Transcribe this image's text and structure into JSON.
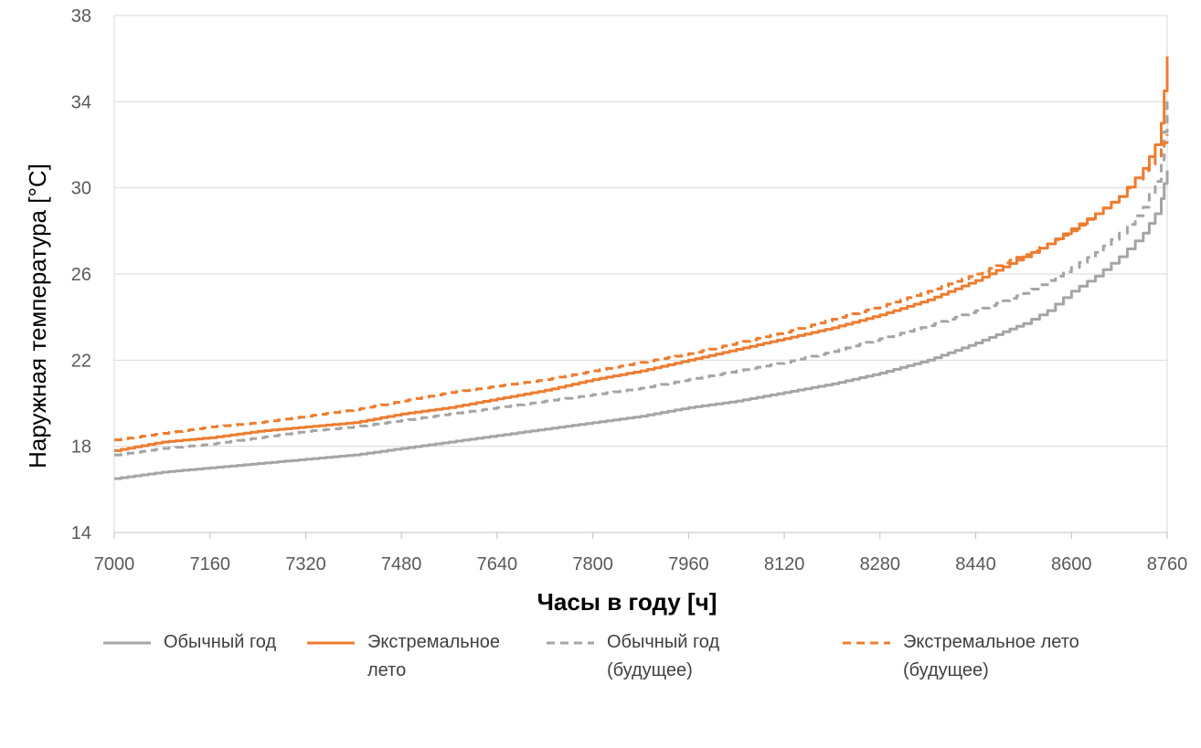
{
  "chart_data": {
    "type": "line",
    "xlabel": "Часы в году [ч]",
    "ylabel": "Наружная температура [°C]",
    "xlim": [
      7000,
      8760
    ],
    "ylim": [
      14,
      38
    ],
    "x_ticks": [
      "7000",
      "7160",
      "7320",
      "7480",
      "7640",
      "7800",
      "7960",
      "8120",
      "8280",
      "8440",
      "8600",
      "8760"
    ],
    "y_ticks": [
      "14",
      "18",
      "22",
      "26",
      "30",
      "34",
      "38"
    ],
    "grid": "horizontal",
    "legend_position": "bottom",
    "series": [
      {
        "name": "Обычный год",
        "color": "#a5a5a5",
        "dash": "solid",
        "points": [
          [
            7000,
            16.5
          ],
          [
            7080,
            16.8
          ],
          [
            7160,
            17.0
          ],
          [
            7240,
            17.2
          ],
          [
            7320,
            17.4
          ],
          [
            7400,
            17.6
          ],
          [
            7480,
            17.9
          ],
          [
            7560,
            18.2
          ],
          [
            7640,
            18.5
          ],
          [
            7720,
            18.8
          ],
          [
            7800,
            19.1
          ],
          [
            7880,
            19.4
          ],
          [
            7960,
            19.8
          ],
          [
            8040,
            20.1
          ],
          [
            8120,
            20.5
          ],
          [
            8200,
            20.9
          ],
          [
            8280,
            21.4
          ],
          [
            8360,
            22.0
          ],
          [
            8440,
            22.8
          ],
          [
            8520,
            23.7
          ],
          [
            8560,
            24.3
          ],
          [
            8600,
            25.2
          ],
          [
            8640,
            25.9
          ],
          [
            8680,
            26.8
          ],
          [
            8720,
            27.9
          ],
          [
            8740,
            28.8
          ],
          [
            8750,
            29.5
          ],
          [
            8755,
            30.2
          ],
          [
            8760,
            30.8
          ]
        ]
      },
      {
        "name": "Экстремальное лето",
        "color": "#ed7d31",
        "dash": "solid",
        "points": [
          [
            7000,
            17.8
          ],
          [
            7080,
            18.2
          ],
          [
            7160,
            18.4
          ],
          [
            7240,
            18.7
          ],
          [
            7320,
            18.9
          ],
          [
            7400,
            19.1
          ],
          [
            7480,
            19.5
          ],
          [
            7560,
            19.8
          ],
          [
            7640,
            20.2
          ],
          [
            7720,
            20.6
          ],
          [
            7800,
            21.1
          ],
          [
            7880,
            21.5
          ],
          [
            7960,
            22.0
          ],
          [
            8040,
            22.5
          ],
          [
            8120,
            23.0
          ],
          [
            8200,
            23.5
          ],
          [
            8280,
            24.1
          ],
          [
            8360,
            24.8
          ],
          [
            8440,
            25.7
          ],
          [
            8520,
            26.8
          ],
          [
            8560,
            27.4
          ],
          [
            8600,
            28.1
          ],
          [
            8640,
            28.8
          ],
          [
            8680,
            29.6
          ],
          [
            8720,
            30.9
          ],
          [
            8740,
            32.0
          ],
          [
            8750,
            33.0
          ],
          [
            8755,
            34.5
          ],
          [
            8760,
            36.1
          ]
        ]
      },
      {
        "name": "Обычный год (будущее)",
        "color": "#a5a5a5",
        "dash": "dashed",
        "points": [
          [
            7000,
            17.6
          ],
          [
            7080,
            17.9
          ],
          [
            7160,
            18.1
          ],
          [
            7240,
            18.4
          ],
          [
            7320,
            18.7
          ],
          [
            7400,
            18.9
          ],
          [
            7480,
            19.2
          ],
          [
            7560,
            19.5
          ],
          [
            7640,
            19.8
          ],
          [
            7720,
            20.1
          ],
          [
            7800,
            20.4
          ],
          [
            7880,
            20.7
          ],
          [
            7960,
            21.1
          ],
          [
            8040,
            21.5
          ],
          [
            8120,
            21.9
          ],
          [
            8200,
            22.4
          ],
          [
            8280,
            23.0
          ],
          [
            8360,
            23.6
          ],
          [
            8440,
            24.3
          ],
          [
            8520,
            25.1
          ],
          [
            8560,
            25.7
          ],
          [
            8600,
            26.3
          ],
          [
            8640,
            27.0
          ],
          [
            8680,
            27.9
          ],
          [
            8720,
            29.1
          ],
          [
            8740,
            30.3
          ],
          [
            8750,
            31.3
          ],
          [
            8755,
            32.6
          ],
          [
            8760,
            34.1
          ]
        ]
      },
      {
        "name": "Экстремальное лето (будущее)",
        "color": "#ed7d31",
        "dash": "dashed",
        "points": [
          [
            7000,
            18.3
          ],
          [
            7080,
            18.6
          ],
          [
            7160,
            18.9
          ],
          [
            7240,
            19.1
          ],
          [
            7320,
            19.4
          ],
          [
            7400,
            19.7
          ],
          [
            7480,
            20.1
          ],
          [
            7560,
            20.5
          ],
          [
            7640,
            20.8
          ],
          [
            7720,
            21.1
          ],
          [
            7800,
            21.5
          ],
          [
            7880,
            21.9
          ],
          [
            7960,
            22.3
          ],
          [
            8040,
            22.8
          ],
          [
            8120,
            23.3
          ],
          [
            8200,
            23.9
          ],
          [
            8280,
            24.5
          ],
          [
            8360,
            25.2
          ],
          [
            8440,
            26.0
          ],
          [
            8520,
            26.9
          ],
          [
            8560,
            27.4
          ],
          [
            8600,
            28.0
          ],
          [
            8640,
            28.8
          ],
          [
            8680,
            29.6
          ],
          [
            8720,
            30.8
          ],
          [
            8740,
            31.4
          ],
          [
            8750,
            31.8
          ],
          [
            8755,
            32.1
          ],
          [
            8760,
            32.5
          ]
        ]
      }
    ]
  },
  "legend": [
    {
      "label": "Обычный год",
      "color": "#a5a5a5",
      "dash": "solid"
    },
    {
      "label": "Экстремальное\nлето",
      "color": "#ed7d31",
      "dash": "solid"
    },
    {
      "label": "Обычный год\n(будущее)",
      "color": "#a5a5a5",
      "dash": "dashed"
    },
    {
      "label": "Экстремальное лето\n(будущее)",
      "color": "#ed7d31",
      "dash": "dashed"
    }
  ]
}
